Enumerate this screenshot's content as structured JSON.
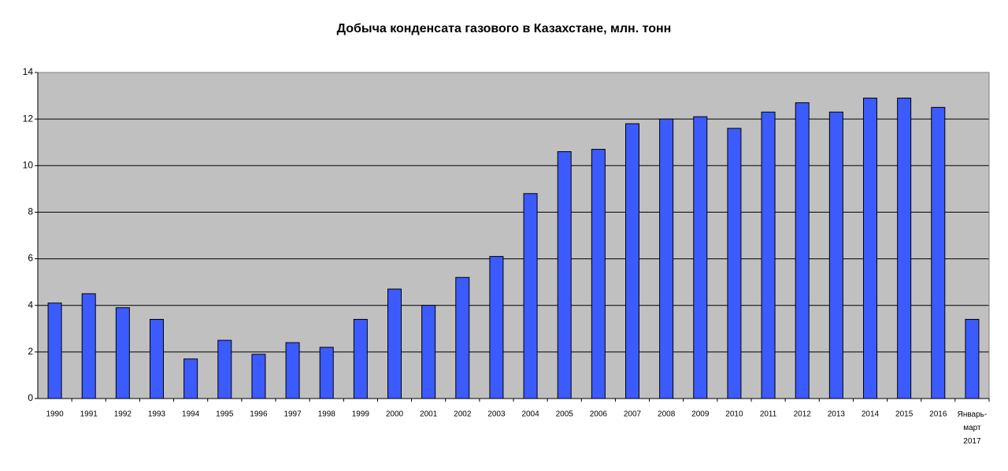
{
  "chart_data": {
    "type": "bar",
    "title": "Добыча конденсата газового в Казахстане, млн. тонн",
    "categories": [
      "1990",
      "1991",
      "1992",
      "1993",
      "1994",
      "1995",
      "1996",
      "1997",
      "1998",
      "1999",
      "2000",
      "2001",
      "2002",
      "2003",
      "2004",
      "2005",
      "2006",
      "2007",
      "2008",
      "2009",
      "2010",
      "2011",
      "2012",
      "2013",
      "2014",
      "2015",
      "2016",
      "Январь-март 2017"
    ],
    "values": [
      4.1,
      4.5,
      3.9,
      3.4,
      1.7,
      2.5,
      1.9,
      2.4,
      2.2,
      3.4,
      4.7,
      4.0,
      5.2,
      6.1,
      8.8,
      10.6,
      10.7,
      11.8,
      12.0,
      12.1,
      11.6,
      12.3,
      12.7,
      12.3,
      12.9,
      12.9,
      12.5,
      3.4
    ],
    "color": "#3b5bff",
    "ylim": [
      0,
      14
    ],
    "yticks": [
      0,
      2,
      4,
      6,
      8,
      10,
      12,
      14
    ],
    "grid": true
  }
}
